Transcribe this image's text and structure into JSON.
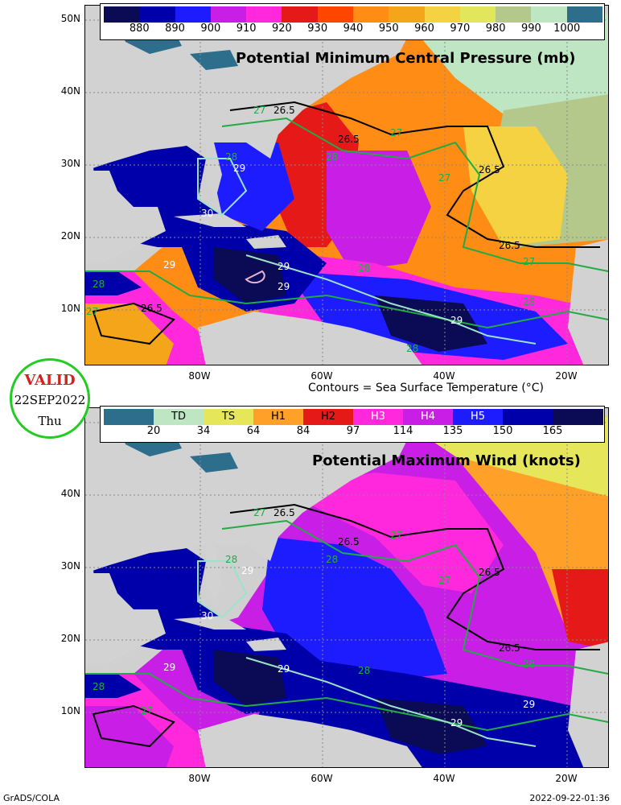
{
  "top_panel": {
    "title": "Potential Minimum Central Pressure (mb)",
    "colorbar": {
      "labels": [
        "880",
        "890",
        "900",
        "910",
        "920",
        "930",
        "940",
        "950",
        "960",
        "970",
        "980",
        "990",
        "1000"
      ],
      "colors": [
        "#0a0a55",
        "#0000aa",
        "#1c1cff",
        "#c81ee6",
        "#ff28dc",
        "#e61919",
        "#ff4600",
        "#ff8c14",
        "#f5a519",
        "#f5d241",
        "#e1e65a",
        "#b4c88c",
        "#bee6c3",
        "#2d6e8c"
      ]
    },
    "contour_labels": [
      "26.5",
      "26.5",
      "26.5",
      "26.5",
      "26.5",
      "27",
      "27",
      "27",
      "27",
      "27",
      "28",
      "28",
      "28",
      "28",
      "28",
      "28",
      "29",
      "29",
      "29",
      "29",
      "29",
      "30"
    ]
  },
  "bottom_panel": {
    "title": "Potential Maximum Wind (knots)",
    "colorbar": {
      "categories": [
        "TD",
        "TS",
        "H1",
        "H2",
        "H3",
        "H4",
        "H5"
      ],
      "labels": [
        "20",
        "34",
        "64",
        "84",
        "97",
        "114",
        "135",
        "150",
        "165"
      ],
      "colors": [
        "#2d6e8c",
        "#bee6c3",
        "#e6e65a",
        "#ffa028",
        "#e61919",
        "#ff28dc",
        "#c81ee6",
        "#1c1cff",
        "#0000aa",
        "#0a0a55"
      ]
    },
    "contour_labels": [
      "26.5",
      "26.5",
      "26.5",
      "26.5",
      "27",
      "27",
      "27",
      "27",
      "28",
      "28",
      "28",
      "28",
      "28",
      "29",
      "29",
      "29",
      "29",
      "29",
      "30"
    ]
  },
  "axes": {
    "lat_labels": [
      "50N",
      "40N",
      "30N",
      "20N",
      "10N"
    ],
    "lon_labels": [
      "80W",
      "60W",
      "40W",
      "20W"
    ]
  },
  "contour_note": "Contours = Sea Surface Temperature (°C)",
  "valid": {
    "word": "VALID",
    "date": "22SEP2022",
    "day": "Thu"
  },
  "footer": {
    "left": "GrADS/COLA",
    "right": "2022-09-22-01:36"
  }
}
